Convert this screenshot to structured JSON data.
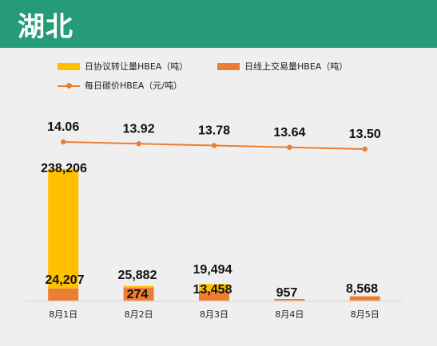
{
  "header": {
    "title": "湖北"
  },
  "colors": {
    "header_bg": "#269b78",
    "agreement": "#ffc000",
    "online": "#ed7d31",
    "price": "#ed7d31"
  },
  "legend": [
    {
      "label": "日协议转让量HBEA（吨）",
      "kind": "bar"
    },
    {
      "label": "日线上交易量HBEA（吨）",
      "kind": "bar"
    },
    {
      "label": "每日碳价HBEA（元/吨）",
      "kind": "line"
    }
  ],
  "chart_data": {
    "type": "bar",
    "categories": [
      "8月1日",
      "8月2日",
      "8月3日",
      "8月4日",
      "8月5日"
    ],
    "series": [
      {
        "name": "日协议转让量HBEA（吨）",
        "type": "bar",
        "values": [
          238206,
          274,
          13458,
          0,
          0
        ],
        "labels": [
          "238,206",
          "274",
          "13,458",
          "",
          ""
        ]
      },
      {
        "name": "日线上交易量HBEA（吨）",
        "type": "bar",
        "values": [
          24207,
          25882,
          19494,
          957,
          8568
        ],
        "labels": [
          "24,207",
          "25,882",
          "19,494",
          "957",
          "8,568"
        ]
      },
      {
        "name": "每日碳价HBEA（元/吨）",
        "type": "line",
        "values": [
          14.06,
          13.92,
          13.78,
          13.64,
          13.5
        ],
        "labels": [
          "14.06",
          "13.92",
          "13.78",
          "13.64",
          "13.50"
        ]
      }
    ],
    "legend_position": "top-left",
    "grid": false
  }
}
